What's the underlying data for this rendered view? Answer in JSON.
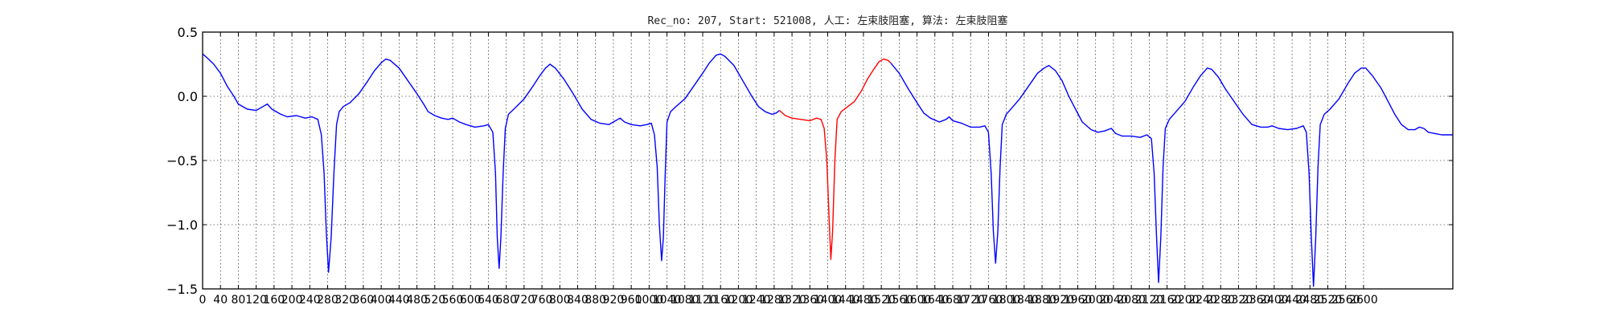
{
  "chart_data": {
    "type": "line",
    "title": "Rec_no: 207, Start: 521008, 人工: 左束肢阻塞, 算法: 左束肢阻塞",
    "xlabel": "",
    "ylabel": "",
    "xlim": [
      0,
      2800
    ],
    "ylim": [
      -1.5,
      0.5
    ],
    "grid": "dotted",
    "yticks": [
      0.5,
      0.0,
      -0.5,
      -1.0,
      -1.5
    ],
    "ytick_labels": [
      "0.5",
      "0.0",
      "−0.5",
      "−1.0",
      "−1.5"
    ],
    "xticks": [
      0,
      40,
      80,
      120,
      160,
      200,
      240,
      280,
      320,
      360,
      400,
      440,
      480,
      520,
      560,
      600,
      640,
      680,
      720,
      760,
      800,
      840,
      880,
      920,
      960,
      1000,
      1040,
      1080,
      1120,
      1160,
      1200,
      1240,
      1280,
      1320,
      1360,
      1400,
      1440,
      1480,
      1520,
      1560,
      1600,
      1640,
      1680,
      1720,
      1760,
      1800,
      1840,
      1880,
      1920,
      1960,
      2000,
      2040,
      2080,
      2120,
      2160,
      2200,
      2240,
      2280,
      2320,
      2360,
      2400,
      2440,
      2480,
      2520,
      2560,
      2600
    ],
    "xtick_labels": [
      "0",
      "40",
      "80",
      "120",
      "160",
      "200",
      "240",
      "280",
      "320",
      "360",
      "400",
      "440",
      "480",
      "520",
      "560",
      "600",
      "640",
      "680",
      "720",
      "760",
      "800",
      "840",
      "880",
      "920",
      "960",
      "1000",
      "1040",
      "1080",
      "1120",
      "1160",
      "1200",
      "1240",
      "1280",
      "1320",
      "1360",
      "1400",
      "1440",
      "1480",
      "1520",
      "1560",
      "1600",
      "1640",
      "1680",
      "1720",
      "1760",
      "1800",
      "1840",
      "1880",
      "1920",
      "1960",
      "2000",
      "2040",
      "2080",
      "2120",
      "2160",
      "2200",
      "2240",
      "2280",
      "2320",
      "2360",
      "2400",
      "2440",
      "2480",
      "2520",
      "2560",
      "2600"
    ],
    "series": [
      {
        "color": "#0000ff",
        "points": [
          [
            0,
            0.33
          ],
          [
            10,
            0.3
          ],
          [
            25,
            0.25
          ],
          [
            40,
            0.18
          ],
          [
            55,
            0.08
          ],
          [
            70,
            0.0
          ],
          [
            80,
            -0.06
          ],
          [
            100,
            -0.1
          ],
          [
            120,
            -0.11
          ],
          [
            135,
            -0.08
          ],
          [
            145,
            -0.06
          ],
          [
            155,
            -0.1
          ],
          [
            175,
            -0.14
          ],
          [
            190,
            -0.16
          ],
          [
            210,
            -0.15
          ],
          [
            230,
            -0.17
          ],
          [
            245,
            -0.16
          ],
          [
            258,
            -0.18
          ],
          [
            266,
            -0.3
          ],
          [
            272,
            -0.6
          ],
          [
            277,
            -1.05
          ],
          [
            282,
            -1.37
          ],
          [
            288,
            -1.1
          ],
          [
            294,
            -0.6
          ],
          [
            300,
            -0.22
          ],
          [
            306,
            -0.12
          ],
          [
            315,
            -0.08
          ],
          [
            330,
            -0.05
          ],
          [
            350,
            0.02
          ],
          [
            370,
            0.12
          ],
          [
            385,
            0.2
          ],
          [
            400,
            0.26
          ],
          [
            410,
            0.29
          ],
          [
            420,
            0.28
          ],
          [
            440,
            0.22
          ],
          [
            460,
            0.12
          ],
          [
            480,
            0.02
          ],
          [
            495,
            -0.06
          ],
          [
            505,
            -0.12
          ],
          [
            520,
            -0.15
          ],
          [
            535,
            -0.17
          ],
          [
            550,
            -0.18
          ],
          [
            560,
            -0.17
          ],
          [
            575,
            -0.2
          ],
          [
            590,
            -0.22
          ],
          [
            610,
            -0.24
          ],
          [
            630,
            -0.23
          ],
          [
            640,
            -0.22
          ],
          [
            650,
            -0.28
          ],
          [
            656,
            -0.6
          ],
          [
            660,
            -1.1
          ],
          [
            664,
            -1.34
          ],
          [
            668,
            -1.1
          ],
          [
            673,
            -0.6
          ],
          [
            678,
            -0.25
          ],
          [
            685,
            -0.14
          ],
          [
            700,
            -0.09
          ],
          [
            720,
            -0.02
          ],
          [
            740,
            0.08
          ],
          [
            755,
            0.16
          ],
          [
            768,
            0.22
          ],
          [
            778,
            0.25
          ],
          [
            790,
            0.22
          ],
          [
            810,
            0.13
          ],
          [
            830,
            0.02
          ],
          [
            850,
            -0.1
          ],
          [
            870,
            -0.18
          ],
          [
            890,
            -0.21
          ],
          [
            910,
            -0.22
          ],
          [
            925,
            -0.19
          ],
          [
            935,
            -0.17
          ],
          [
            945,
            -0.2
          ],
          [
            960,
            -0.22
          ],
          [
            980,
            -0.23
          ],
          [
            995,
            -0.22
          ],
          [
            1005,
            -0.21
          ],
          [
            1012,
            -0.3
          ],
          [
            1018,
            -0.55
          ],
          [
            1023,
            -1.0
          ],
          [
            1028,
            -1.28
          ],
          [
            1032,
            -1.1
          ],
          [
            1036,
            -0.6
          ],
          [
            1040,
            -0.2
          ],
          [
            1048,
            -0.12
          ],
          [
            1060,
            -0.08
          ],
          [
            1080,
            -0.02
          ],
          [
            1100,
            0.08
          ],
          [
            1120,
            0.18
          ],
          [
            1135,
            0.26
          ],
          [
            1150,
            0.32
          ],
          [
            1160,
            0.33
          ],
          [
            1170,
            0.31
          ],
          [
            1190,
            0.24
          ],
          [
            1210,
            0.12
          ],
          [
            1230,
            0.0
          ],
          [
            1245,
            -0.08
          ],
          [
            1260,
            -0.12
          ],
          [
            1275,
            -0.14
          ],
          [
            1285,
            -0.13
          ],
          [
            1292,
            -0.11
          ]
        ]
      },
      {
        "color": "#ff0000",
        "points": [
          [
            1292,
            -0.11
          ],
          [
            1305,
            -0.15
          ],
          [
            1320,
            -0.17
          ],
          [
            1340,
            -0.18
          ],
          [
            1360,
            -0.19
          ],
          [
            1375,
            -0.17
          ],
          [
            1385,
            -0.18
          ],
          [
            1392,
            -0.25
          ],
          [
            1398,
            -0.5
          ],
          [
            1403,
            -0.95
          ],
          [
            1407,
            -1.27
          ],
          [
            1411,
            -1.05
          ],
          [
            1416,
            -0.5
          ],
          [
            1421,
            -0.18
          ],
          [
            1430,
            -0.12
          ],
          [
            1445,
            -0.08
          ],
          [
            1460,
            -0.04
          ],
          [
            1475,
            0.04
          ],
          [
            1490,
            0.14
          ],
          [
            1505,
            0.22
          ],
          [
            1515,
            0.27
          ],
          [
            1525,
            0.29
          ],
          [
            1535,
            0.28
          ],
          [
            1541,
            0.26
          ]
        ]
      },
      {
        "color": "#0000ff",
        "points": [
          [
            1541,
            0.26
          ],
          [
            1560,
            0.18
          ],
          [
            1580,
            0.06
          ],
          [
            1600,
            -0.05
          ],
          [
            1615,
            -0.13
          ],
          [
            1630,
            -0.17
          ],
          [
            1650,
            -0.2
          ],
          [
            1665,
            -0.18
          ],
          [
            1672,
            -0.16
          ],
          [
            1680,
            -0.19
          ],
          [
            1700,
            -0.21
          ],
          [
            1720,
            -0.24
          ],
          [
            1740,
            -0.24
          ],
          [
            1752,
            -0.23
          ],
          [
            1760,
            -0.28
          ],
          [
            1766,
            -0.6
          ],
          [
            1771,
            -1.05
          ],
          [
            1776,
            -1.3
          ],
          [
            1781,
            -1.05
          ],
          [
            1786,
            -0.55
          ],
          [
            1791,
            -0.22
          ],
          [
            1800,
            -0.14
          ],
          [
            1815,
            -0.08
          ],
          [
            1830,
            -0.02
          ],
          [
            1850,
            0.08
          ],
          [
            1870,
            0.18
          ],
          [
            1885,
            0.22
          ],
          [
            1895,
            0.24
          ],
          [
            1910,
            0.2
          ],
          [
            1925,
            0.12
          ],
          [
            1940,
            0.0
          ],
          [
            1955,
            -0.1
          ],
          [
            1970,
            -0.2
          ],
          [
            1990,
            -0.26
          ],
          [
            2005,
            -0.28
          ],
          [
            2020,
            -0.27
          ],
          [
            2035,
            -0.25
          ],
          [
            2045,
            -0.29
          ],
          [
            2060,
            -0.31
          ],
          [
            2080,
            -0.31
          ],
          [
            2100,
            -0.32
          ],
          [
            2115,
            -0.3
          ],
          [
            2125,
            -0.33
          ],
          [
            2131,
            -0.6
          ],
          [
            2136,
            -1.05
          ],
          [
            2141,
            -1.45
          ],
          [
            2146,
            -1.1
          ],
          [
            2151,
            -0.55
          ],
          [
            2156,
            -0.25
          ],
          [
            2165,
            -0.18
          ],
          [
            2180,
            -0.12
          ],
          [
            2200,
            -0.04
          ],
          [
            2220,
            0.08
          ],
          [
            2235,
            0.16
          ],
          [
            2250,
            0.22
          ],
          [
            2260,
            0.21
          ],
          [
            2275,
            0.15
          ],
          [
            2290,
            0.06
          ],
          [
            2310,
            -0.04
          ],
          [
            2330,
            -0.14
          ],
          [
            2350,
            -0.22
          ],
          [
            2370,
            -0.24
          ],
          [
            2385,
            -0.24
          ],
          [
            2395,
            -0.23
          ],
          [
            2410,
            -0.25
          ],
          [
            2430,
            -0.26
          ],
          [
            2450,
            -0.25
          ],
          [
            2465,
            -0.23
          ],
          [
            2472,
            -0.28
          ],
          [
            2478,
            -0.6
          ],
          [
            2483,
            -1.1
          ],
          [
            2488,
            -1.48
          ],
          [
            2493,
            -1.1
          ],
          [
            2498,
            -0.55
          ],
          [
            2503,
            -0.22
          ],
          [
            2512,
            -0.14
          ],
          [
            2525,
            -0.1
          ],
          [
            2545,
            -0.02
          ],
          [
            2565,
            0.1
          ],
          [
            2580,
            0.18
          ],
          [
            2595,
            0.22
          ],
          [
            2605,
            0.22
          ],
          [
            2620,
            0.16
          ],
          [
            2640,
            0.06
          ],
          [
            2655,
            -0.04
          ],
          [
            2670,
            -0.14
          ],
          [
            2685,
            -0.22
          ],
          [
            2700,
            -0.26
          ],
          [
            2715,
            -0.26
          ],
          [
            2725,
            -0.24
          ],
          [
            2735,
            -0.25
          ],
          [
            2745,
            -0.28
          ],
          [
            2760,
            -0.29
          ],
          [
            2775,
            -0.3
          ],
          [
            2785,
            -0.3
          ],
          [
            2795,
            -0.3
          ],
          [
            2800,
            -0.3
          ]
        ]
      }
    ]
  }
}
